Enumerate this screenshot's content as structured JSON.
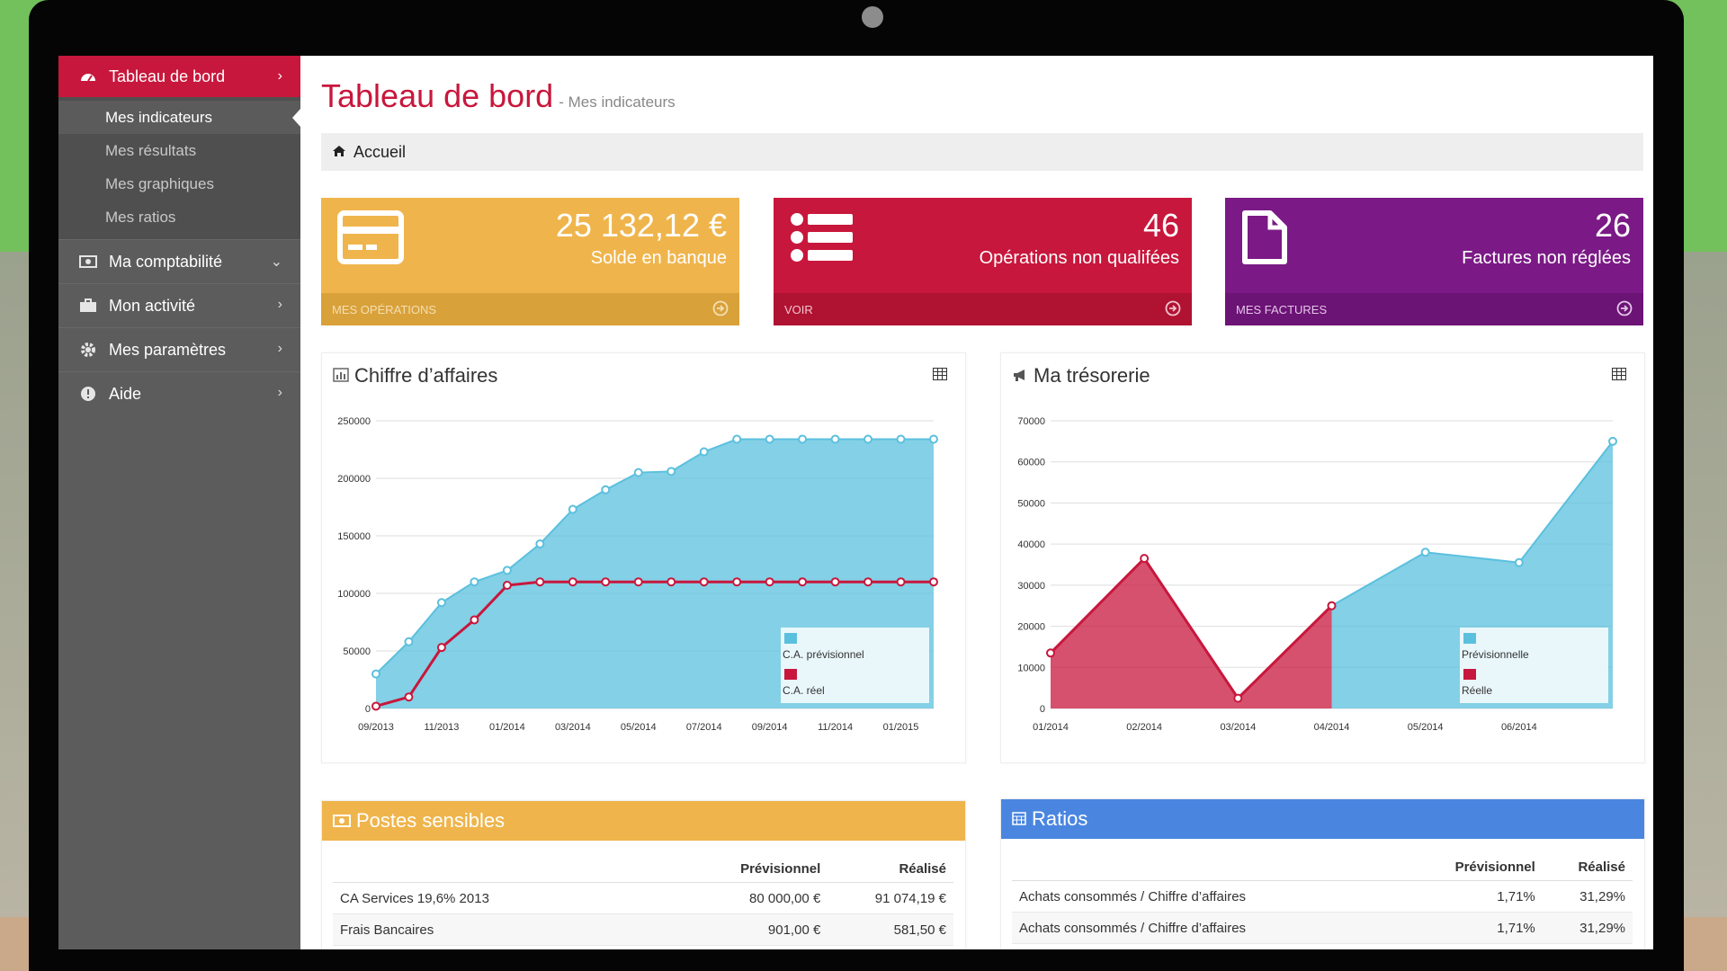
{
  "sidebar": {
    "header": {
      "label": "Tableau de bord"
    },
    "subitems": [
      {
        "label": "Mes indicateurs",
        "active": true
      },
      {
        "label": "Mes résultats"
      },
      {
        "label": "Mes graphiques"
      },
      {
        "label": "Mes ratios"
      }
    ],
    "items": [
      {
        "label": "Ma comptabilité",
        "icon": "money-icon"
      },
      {
        "label": "Mon activité",
        "icon": "briefcase-icon"
      },
      {
        "label": "Mes paramètres",
        "icon": "gear-icon"
      },
      {
        "label": "Aide",
        "icon": "info-icon"
      }
    ]
  },
  "page": {
    "title": "Tableau de bord",
    "subtitle": "- Mes indicateurs"
  },
  "breadcrumb": {
    "label": "Accueil"
  },
  "stats": [
    {
      "value": "25 132,12 €",
      "label": "Solde en banque",
      "link": "MES OPÉRATIONS",
      "color": "#efb54c"
    },
    {
      "value": "46",
      "label": "Opérations non qualifées",
      "link": "VOIR",
      "color": "#c8173c"
    },
    {
      "value": "26",
      "label": "Factures non réglées",
      "link": "MES FACTURES",
      "color": "#7b1a86"
    }
  ],
  "panels": {
    "ca_title": "Chiffre d’affaires",
    "treso_title": "Ma trésorerie",
    "postes_title": "Postes sensibles",
    "ratios_title": "Ratios"
  },
  "chart_data": [
    {
      "type": "area",
      "title": "Chiffre d’affaires",
      "ylim": [
        0,
        250000
      ],
      "yticks": [
        0,
        50000,
        100000,
        150000,
        200000,
        250000
      ],
      "x_tick_labels": [
        "09/2013",
        "11/2013",
        "01/2014",
        "03/2014",
        "05/2014",
        "07/2014",
        "09/2014",
        "11/2014",
        "01/2015"
      ],
      "x": [
        "09/2013",
        "10/2013",
        "11/2013",
        "12/2013",
        "01/2014",
        "02/2014",
        "03/2014",
        "04/2014",
        "05/2014",
        "06/2014",
        "07/2014",
        "08/2014",
        "09/2014",
        "10/2014",
        "11/2014",
        "12/2014",
        "01/2015",
        "02/2015"
      ],
      "series": [
        {
          "name": "C.A. prévisionnel",
          "color": "#5bc0de",
          "values": [
            30000,
            58000,
            92000,
            110000,
            120000,
            143000,
            173000,
            190000,
            205000,
            206000,
            223000,
            234000,
            234000,
            234000,
            234000,
            234000,
            234000,
            234000
          ]
        },
        {
          "name": "C.A. réel",
          "color": "#c8173c",
          "values": [
            2000,
            10000,
            53000,
            77000,
            107000,
            110000,
            110000,
            110000,
            110000,
            110000,
            110000,
            110000,
            110000,
            110000,
            110000,
            110000,
            110000,
            110000
          ]
        }
      ],
      "legend": "bottom-right",
      "grid": true
    },
    {
      "type": "area",
      "title": "Ma trésorerie",
      "ylim": [
        0,
        70000
      ],
      "yticks": [
        0,
        10000,
        20000,
        30000,
        40000,
        50000,
        60000,
        70000
      ],
      "x": [
        "01/2014",
        "02/2014",
        "03/2014",
        "04/2014",
        "05/2014",
        "06/2014",
        "07/2014"
      ],
      "x_tick_labels": [
        "01/2014",
        "02/2014",
        "03/2014",
        "04/2014",
        "05/2014",
        "06/2014"
      ],
      "series": [
        {
          "name": "Prévisionnelle",
          "color": "#5bc0de",
          "values": [
            null,
            null,
            null,
            25000,
            38000,
            35500,
            65000
          ]
        },
        {
          "name": "Réelle",
          "color": "#c8173c",
          "values": [
            13500,
            36500,
            2500,
            25000,
            null,
            null,
            null
          ]
        }
      ],
      "legend": "bottom-right",
      "grid": true
    }
  ],
  "postes": {
    "headers": [
      "",
      "Prévisionnel",
      "Réalisé"
    ],
    "rows": [
      [
        "CA Services 19,6% 2013",
        "80 000,00 €",
        "91 074,19 €"
      ],
      [
        "Frais Bancaires",
        "901,00 €",
        "581,50 €"
      ]
    ]
  },
  "ratios": {
    "headers": [
      "",
      "Prévisionnel",
      "Réalisé"
    ],
    "rows": [
      [
        "Achats consommés / Chiffre d’affaires",
        "1,71%",
        "31,29%"
      ],
      [
        "Achats consommés / Chiffre d’affaires",
        "1,71%",
        "31,29%"
      ]
    ]
  }
}
